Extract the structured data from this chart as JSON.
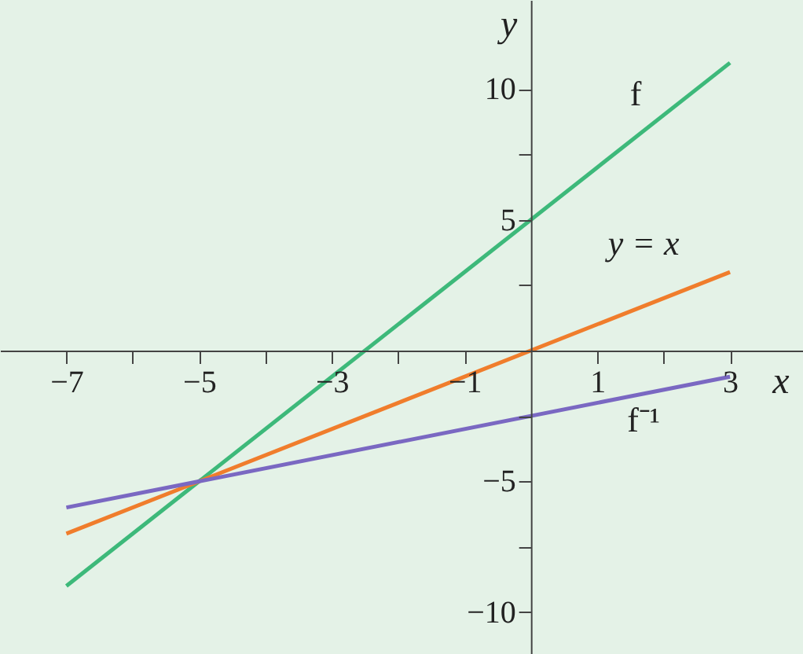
{
  "chart_data": {
    "type": "line",
    "xlabel": "x",
    "ylabel": "y",
    "x": [
      -7,
      3
    ],
    "series": [
      {
        "name": "f",
        "color": "#3db97a",
        "values": [
          -9,
          11
        ]
      },
      {
        "name": "y = x",
        "color": "#f07d2c",
        "values": [
          -7,
          3
        ]
      },
      {
        "name": "f⁻¹",
        "color": "#7a68c2",
        "values": [
          -6,
          -1
        ]
      }
    ],
    "xlim": [
      -8,
      4.1
    ],
    "ylim": [
      -11.6,
      13.4
    ],
    "xticks": [
      -7,
      {
        "value": -6,
        "label": null
      },
      -5,
      {
        "value": -4,
        "label": null
      },
      -3,
      {
        "value": -2,
        "label": null
      },
      -1,
      {
        "value": 1,
        "label": "1"
      },
      {
        "value": 2,
        "label": null
      },
      3
    ],
    "yticks": [
      -10,
      {
        "value": -7.5,
        "label": null
      },
      -5,
      {
        "value": -2.5,
        "label": null
      },
      {
        "value": 2.5,
        "label": null
      },
      5,
      {
        "value": 7.5,
        "label": null
      },
      10
    ],
    "grid": false
  }
}
